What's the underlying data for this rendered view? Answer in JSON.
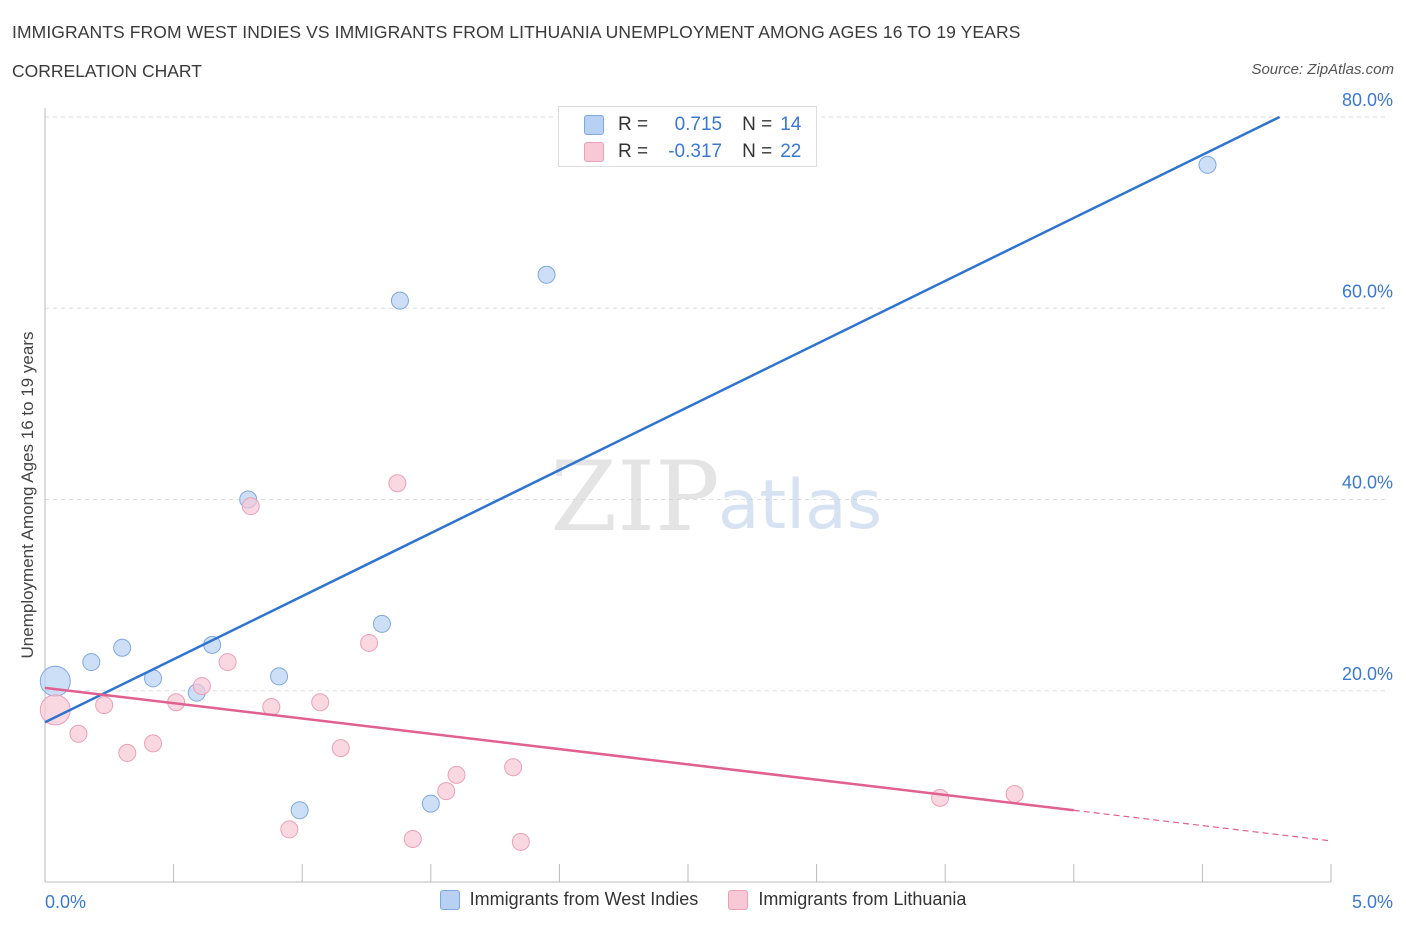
{
  "title": "IMMIGRANTS FROM WEST INDIES VS IMMIGRANTS FROM LITHUANIA UNEMPLOYMENT AMONG AGES 16 TO 19 YEARS",
  "subtitle": "CORRELATION CHART",
  "source": "Source: ZipAtlas.com",
  "watermark": {
    "zip": "ZIP",
    "atlas": "atlas"
  },
  "colors": {
    "blue_fill": "#b8d1f3",
    "blue_line": "#2f74d0",
    "blue_text": "#3a78d4",
    "pink_fill": "#f7c8d6",
    "pink_line": "#e0608f",
    "grid": "#dddddd"
  },
  "stats": [
    {
      "r_label": "R =",
      "r_value": "0.715",
      "n_label": "N =",
      "n_value": "14"
    },
    {
      "r_label": "R =",
      "r_value": "-0.317",
      "n_label": "N =",
      "n_value": "22"
    }
  ],
  "chart_data": {
    "type": "scatter",
    "title": "IMMIGRANTS FROM WEST INDIES VS IMMIGRANTS FROM LITHUANIA UNEMPLOYMENT AMONG AGES 16 TO 19 YEARS",
    "xlabel": "",
    "ylabel": "Unemployment Among Ages 16 to 19 years",
    "xlim": [
      0,
      5
    ],
    "ylim": [
      0,
      80
    ],
    "x_tick_labels": [
      "0.0%",
      "5.0%"
    ],
    "y_ticks": [
      20,
      40,
      60,
      80
    ],
    "y_tick_labels": [
      "20.0%",
      "40.0%",
      "60.0%",
      "80.0%"
    ],
    "grid": true,
    "legend_position": "bottom",
    "series": [
      {
        "name": "Immigrants from West Indies",
        "points": [
          {
            "x": 0.04,
            "y": 21.0,
            "size": "large"
          },
          {
            "x": 0.18,
            "y": 23.0
          },
          {
            "x": 0.3,
            "y": 24.5
          },
          {
            "x": 0.42,
            "y": 21.3
          },
          {
            "x": 0.59,
            "y": 19.8
          },
          {
            "x": 0.65,
            "y": 24.8
          },
          {
            "x": 0.79,
            "y": 40.0
          },
          {
            "x": 0.91,
            "y": 21.5
          },
          {
            "x": 0.99,
            "y": 7.5
          },
          {
            "x": 1.31,
            "y": 27.0
          },
          {
            "x": 1.38,
            "y": 60.8
          },
          {
            "x": 1.5,
            "y": 8.2
          },
          {
            "x": 1.95,
            "y": 63.5
          },
          {
            "x": 4.52,
            "y": 75.0
          }
        ],
        "trend": {
          "x0": 0.0,
          "y0": 16.7,
          "x1": 4.8,
          "y1": 80.0
        }
      },
      {
        "name": "Immigrants from Lithuania",
        "points": [
          {
            "x": 0.04,
            "y": 18.0,
            "size": "large"
          },
          {
            "x": 0.13,
            "y": 15.5
          },
          {
            "x": 0.23,
            "y": 18.5
          },
          {
            "x": 0.32,
            "y": 13.5
          },
          {
            "x": 0.42,
            "y": 14.5
          },
          {
            "x": 0.51,
            "y": 18.8
          },
          {
            "x": 0.61,
            "y": 20.5
          },
          {
            "x": 0.71,
            "y": 23.0
          },
          {
            "x": 0.8,
            "y": 39.3
          },
          {
            "x": 0.88,
            "y": 18.3
          },
          {
            "x": 0.95,
            "y": 5.5
          },
          {
            "x": 1.07,
            "y": 18.8
          },
          {
            "x": 1.15,
            "y": 14.0
          },
          {
            "x": 1.26,
            "y": 25.0
          },
          {
            "x": 1.37,
            "y": 41.7
          },
          {
            "x": 1.43,
            "y": 4.5
          },
          {
            "x": 1.56,
            "y": 9.5
          },
          {
            "x": 1.6,
            "y": 11.2
          },
          {
            "x": 1.82,
            "y": 12.0
          },
          {
            "x": 1.85,
            "y": 4.2
          },
          {
            "x": 3.48,
            "y": 8.8
          },
          {
            "x": 3.77,
            "y": 9.2
          }
        ],
        "trend": {
          "x0": 0.0,
          "y0": 20.3,
          "x1": 4.0,
          "y1": 7.5
        },
        "trend_extension": {
          "x0": 4.0,
          "y0": 7.5,
          "x1": 5.0,
          "y1": 4.3
        }
      }
    ]
  }
}
